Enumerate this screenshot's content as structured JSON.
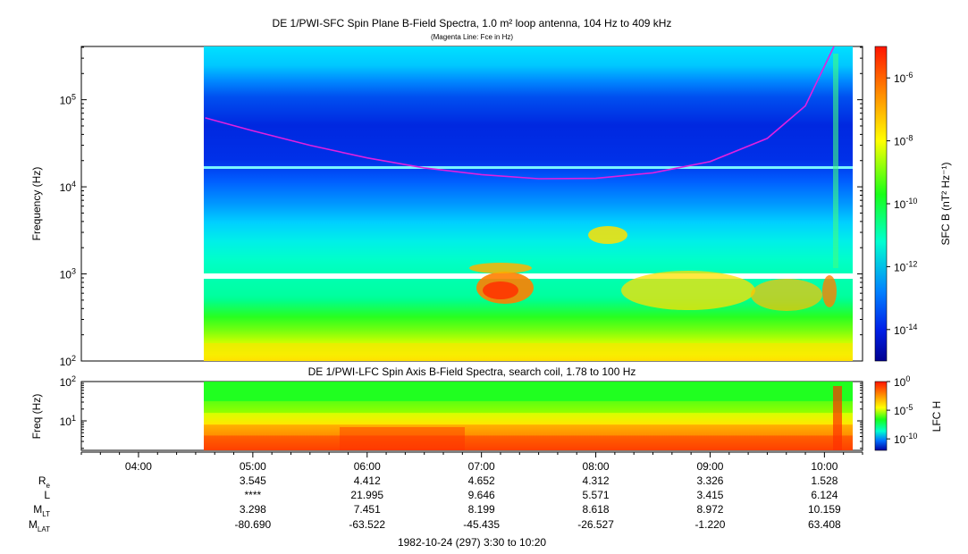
{
  "chart_data": [
    {
      "type": "heatmap",
      "title": "DE 1/PWI-SFC  Spin Plane B-Field Spectra, 1.0 m² loop antenna, 104 Hz to 409 kHz",
      "subtitle": "(Magenta Line: Fce in Hz)",
      "ylabel": "Frequency (Hz)",
      "yscale": "log",
      "ylim": [
        100,
        409000
      ],
      "ytick_labels": [
        "10^2",
        "10^3",
        "10^4",
        "10^5"
      ],
      "xlim": [
        "03:30",
        "10:20"
      ],
      "data_start": "04:35",
      "data_end": "10:12",
      "colorbar": {
        "label": "SFC B (nT² Hz⁻¹)",
        "scale": "log",
        "range": [
          1e-15,
          1e-05
        ],
        "tick_labels": [
          "10^-6",
          "10^-8",
          "10^-10",
          "10^-12",
          "10^-14"
        ]
      },
      "series": [
        {
          "name": "Fce in Hz",
          "color": "#e020e0",
          "points": [
            [
              "04:35",
              62000
            ],
            [
              "05:00",
              44000
            ],
            [
              "05:30",
              30000
            ],
            [
              "06:00",
              21500
            ],
            [
              "06:30",
              16500
            ],
            [
              "07:00",
              13800
            ],
            [
              "07:30",
              12400
            ],
            [
              "08:00",
              12500
            ],
            [
              "08:30",
              14500
            ],
            [
              "09:00",
              19500
            ],
            [
              "09:30",
              36000
            ],
            [
              "09:50",
              85000
            ],
            [
              "10:05",
              409000
            ]
          ]
        }
      ],
      "annotations": [
        "horizontal line near 1.6x10^4 Hz",
        "enhanced emission 500-1500 Hz near 06:50-07:25",
        "emission patch near 3x10^3 Hz around 07:45-08:00"
      ]
    },
    {
      "type": "heatmap",
      "title": "DE 1/PWI-LFC  Spin Axis B-Field Spectra, search coil, 1.78 to 100 Hz",
      "ylabel": "Freq (Hz)",
      "yscale": "log",
      "ylim": [
        1.78,
        100
      ],
      "ytick_labels": [
        "10^1",
        "10^2"
      ],
      "xlim": [
        "03:30",
        "10:20"
      ],
      "data_start": "04:35",
      "data_end": "10:12",
      "colorbar": {
        "label": "LFC H",
        "scale": "log",
        "range": [
          1e-12,
          1
        ],
        "tick_labels": [
          "10^0",
          "10^-5",
          "10^-10"
        ]
      }
    }
  ],
  "time_axis": {
    "tick_labels": [
      "04:00",
      "05:00",
      "06:00",
      "07:00",
      "08:00",
      "09:00",
      "10:00"
    ],
    "footer": "1982-10-24 (297) 3:30 to 10:20"
  },
  "ephemeris": {
    "rows": [
      {
        "label": "R",
        "sub": "e",
        "values": [
          "",
          "3.545",
          "4.412",
          "4.652",
          "4.312",
          "3.326",
          "1.528"
        ]
      },
      {
        "label": "L",
        "sub": "",
        "values": [
          "",
          "****",
          "21.995",
          "9.646",
          "5.571",
          "3.415",
          "6.124"
        ]
      },
      {
        "label": "M",
        "sub": "LT",
        "values": [
          "",
          "3.298",
          "7.451",
          "8.199",
          "8.618",
          "8.972",
          "10.159"
        ]
      },
      {
        "label": "M",
        "sub": "LAT",
        "values": [
          "",
          "-80.690",
          "-63.522",
          "-45.435",
          "-26.527",
          "-1.220",
          "63.408"
        ]
      }
    ]
  },
  "colors": {
    "magenta_line": "#e020e0",
    "background": "#ffffff"
  }
}
